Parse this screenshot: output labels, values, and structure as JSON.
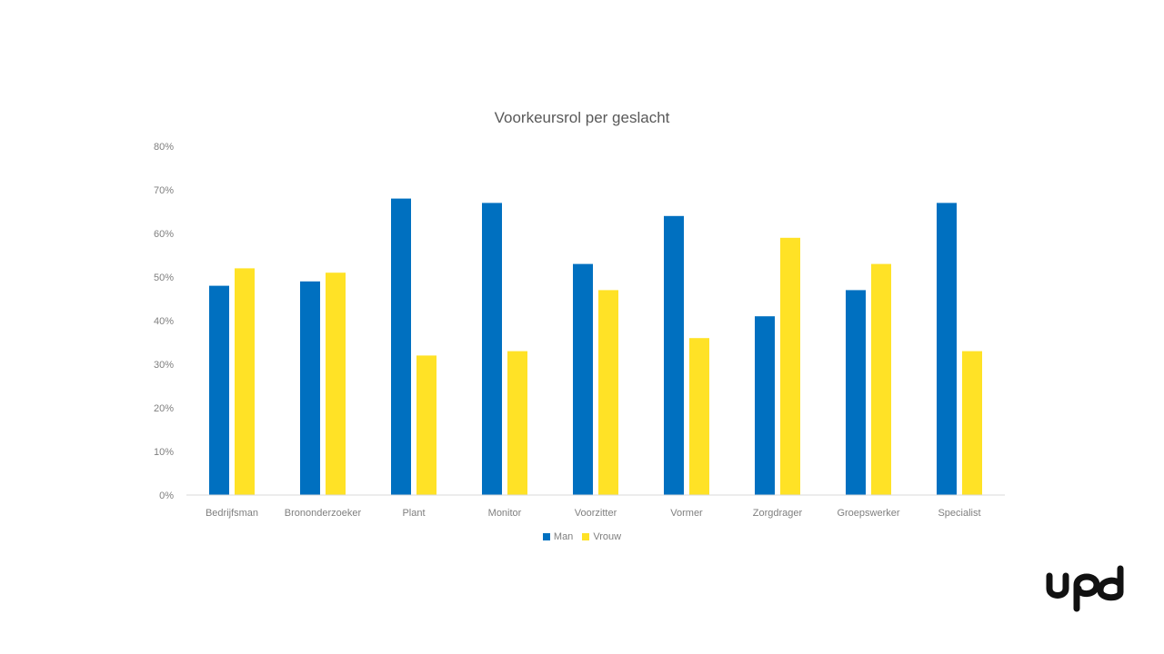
{
  "colors": {
    "man": "#0070C0",
    "vrouw": "#FFE226",
    "axis": "#d9d9d9",
    "text": "#7f7f7f",
    "logo": "#111111"
  },
  "logo": {
    "name": "upd"
  },
  "chart_data": {
    "type": "bar",
    "title": "Voorkeursrol per geslacht",
    "xlabel": "",
    "ylabel": "",
    "ylim": [
      0,
      80
    ],
    "y_ticks": [
      "0%",
      "10%",
      "20%",
      "30%",
      "40%",
      "50%",
      "60%",
      "70%",
      "80%"
    ],
    "grid": false,
    "legend_position": "bottom",
    "categories": [
      "Bedrijfsman",
      "Brononderzoeker",
      "Plant",
      "Monitor",
      "Voorzitter",
      "Vormer",
      "Zorgdrager",
      "Groepswerker",
      "Specialist"
    ],
    "series": [
      {
        "name": "Man",
        "values": [
          48,
          49,
          68,
          67,
          53,
          64,
          41,
          47,
          67
        ]
      },
      {
        "name": "Vrouw",
        "values": [
          52,
          51,
          32,
          33,
          47,
          36,
          59,
          53,
          33
        ]
      }
    ]
  }
}
